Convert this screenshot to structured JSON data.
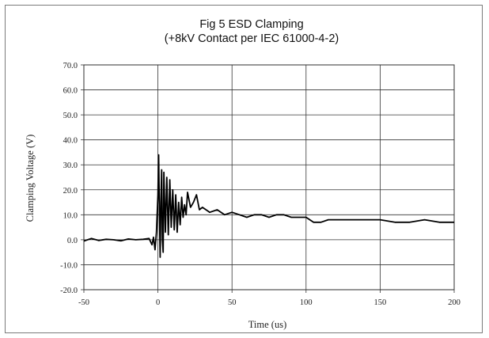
{
  "chart_data": {
    "type": "line",
    "title_line1": "Fig 5 ESD Clamping",
    "title_line2": "(+8kV Contact per IEC 61000-4-2)",
    "xlabel": "Time (us)",
    "ylabel": "Clamping Voltage (V)",
    "xlim": [
      -50,
      200
    ],
    "ylim": [
      -20,
      70
    ],
    "x_ticks": [
      -50,
      0,
      50,
      100,
      150,
      200
    ],
    "x_tick_labels": [
      "-50",
      "0",
      "50",
      "100",
      "150",
      "200"
    ],
    "y_ticks": [
      70,
      60,
      50,
      40,
      30,
      20,
      10,
      0,
      -10,
      -20
    ],
    "y_tick_labels": [
      "70.0",
      "60.0",
      "50.0",
      "40.0",
      "30.0",
      "20.0",
      "10.0",
      "0.0",
      "-10.0",
      "-20.0"
    ],
    "grid": true,
    "series": [
      {
        "color": "#000000",
        "x": [
          -50,
          -45,
          -40,
          -35,
          -30,
          -25,
          -20,
          -15,
          -10,
          -6,
          -4,
          -3,
          -2,
          -1,
          0,
          0.5,
          1,
          1.5,
          2,
          2.5,
          3,
          3.5,
          4,
          5,
          6,
          7,
          8,
          9,
          10,
          11,
          12,
          13,
          14,
          15,
          16,
          17,
          18,
          19,
          20,
          22,
          24,
          26,
          28,
          30,
          35,
          40,
          45,
          50,
          55,
          60,
          65,
          70,
          75,
          80,
          85,
          90,
          95,
          100,
          105,
          110,
          115,
          120,
          130,
          140,
          150,
          160,
          170,
          180,
          190,
          195,
          200
        ],
        "y": [
          -0.5,
          0.5,
          -0.3,
          0.2,
          0,
          -0.4,
          0.3,
          0,
          0.2,
          0.5,
          -2,
          1,
          -4,
          3,
          18,
          34,
          10,
          -7,
          15,
          28,
          0,
          -5,
          27,
          3,
          25,
          2,
          24,
          5,
          20,
          4,
          18,
          3,
          15,
          6,
          17,
          9,
          14,
          10,
          19,
          13,
          15,
          18,
          12,
          13,
          11,
          12,
          10,
          11,
          10,
          9,
          10,
          10,
          9,
          10,
          10,
          9,
          9,
          9,
          7,
          7,
          8,
          8,
          8,
          8,
          8,
          7,
          7,
          8,
          7,
          7,
          7
        ]
      }
    ]
  }
}
